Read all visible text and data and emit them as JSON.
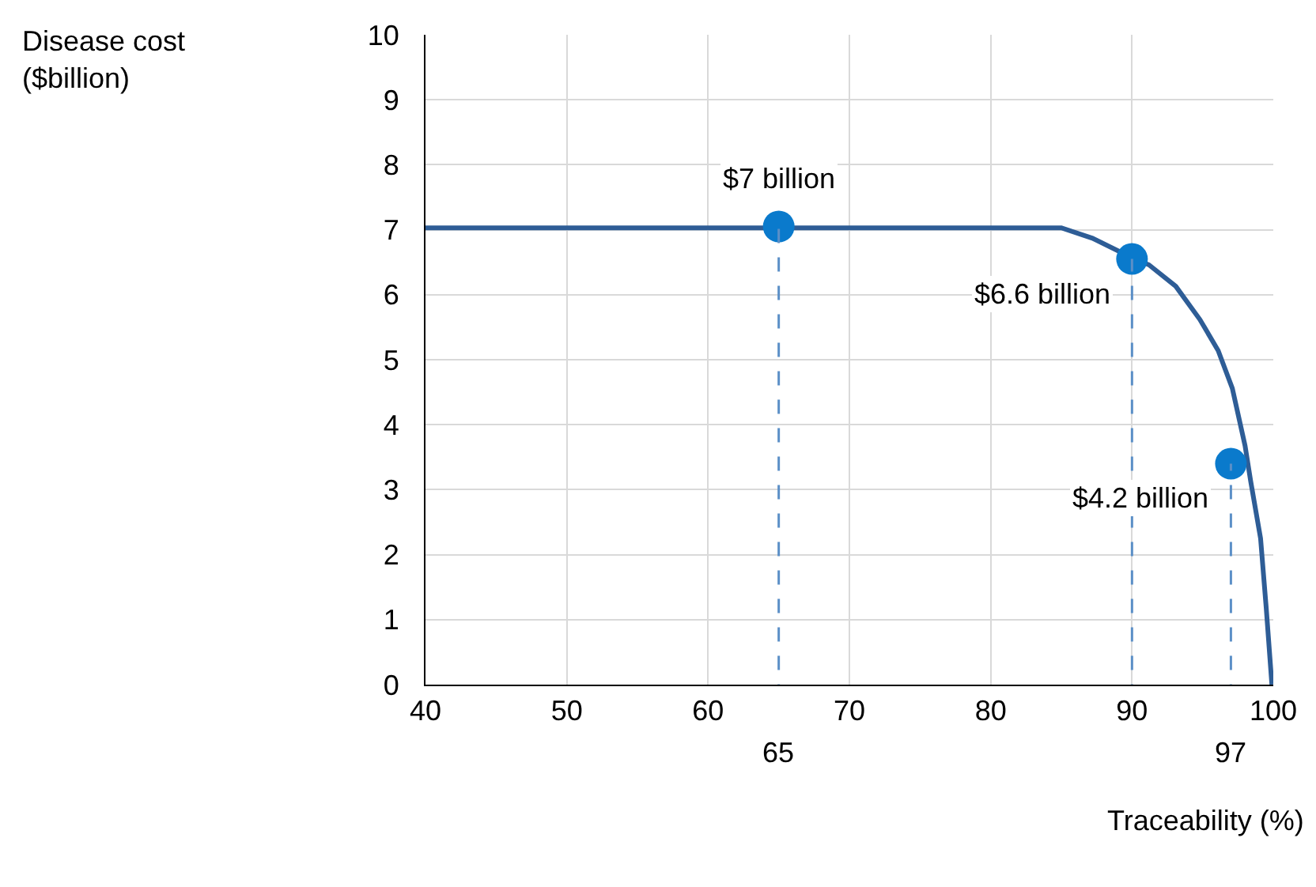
{
  "chart_data": {
    "type": "line",
    "xlabel": "Traceability (%)",
    "xlim": [
      40,
      100
    ],
    "ylim": [
      0,
      10
    ],
    "xticks": [
      40,
      50,
      60,
      70,
      80,
      90,
      100
    ],
    "yticks": [
      0,
      1,
      2,
      3,
      4,
      5,
      6,
      7,
      8,
      9,
      10
    ],
    "grid": true,
    "series": [
      {
        "type": "line",
        "color": "#2e5d96",
        "x": [
          40,
          85,
          87.2,
          90,
          91.2,
          93.1,
          94.8,
          96.1,
          97.1,
          98,
          98.4,
          99.1,
          99.5,
          99.9
        ],
        "values": [
          7.03,
          7.03,
          6.87,
          6.57,
          6.46,
          6.13,
          5.62,
          5.14,
          4.56,
          3.68,
          3.13,
          2.25,
          1.18,
          0
        ]
      },
      {
        "type": "scatter",
        "color": "#0a7acc",
        "marker": "circle",
        "x": [
          65,
          90,
          97
        ],
        "values": [
          7.05,
          6.55,
          3.4
        ]
      }
    ],
    "ref_lines": [
      {
        "axis": "x",
        "value": 65,
        "label": "65",
        "color": "#5b8fc7",
        "line_style": "dashed"
      },
      {
        "axis": "x",
        "value": 90,
        "label": null,
        "color": "#5b8fc7",
        "line_style": "dashed"
      },
      {
        "axis": "x",
        "value": 97,
        "label": "97",
        "color": "#5b8fc7",
        "line_style": "dashed"
      }
    ],
    "annotations": [
      "Disease cost\n($billion)",
      {
        "text": "$7 billion",
        "x": 65,
        "y": 7.05
      },
      {
        "text": "$6.6 billion",
        "x": 90,
        "y": 6.55
      },
      {
        "text": "$4.2 billion",
        "x": 97,
        "y": 3.4
      }
    ]
  }
}
